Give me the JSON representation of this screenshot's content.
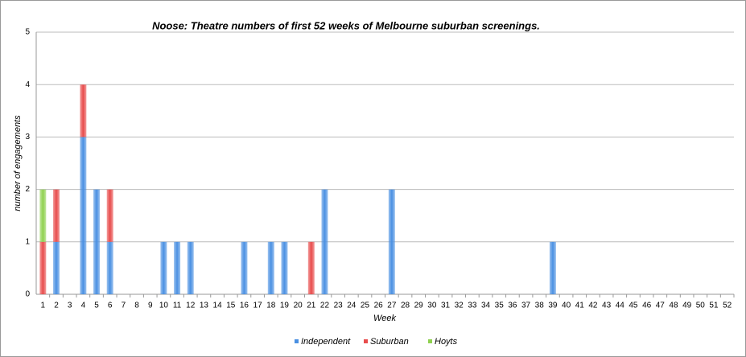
{
  "chart_data": {
    "type": "stacked_bar",
    "title": "Noose: Theatre numbers of first 52 weeks of Melbourne suburban screenings.",
    "x_label": "Week",
    "y_label": "number of engagements",
    "categories": [
      "1",
      "2",
      "3",
      "4",
      "5",
      "6",
      "7",
      "8",
      "9",
      "10",
      "11",
      "12",
      "13",
      "14",
      "15",
      "16",
      "17",
      "18",
      "19",
      "20",
      "21",
      "22",
      "23",
      "24",
      "25",
      "26",
      "27",
      "28",
      "29",
      "30",
      "31",
      "32",
      "33",
      "34",
      "35",
      "36",
      "37",
      "38",
      "39",
      "40",
      "41",
      "42",
      "43",
      "44",
      "45",
      "46",
      "47",
      "48",
      "49",
      "50",
      "51",
      "52"
    ],
    "series": [
      {
        "name": "Independent",
        "color": "#4a90e2",
        "values": [
          0,
          1,
          0,
          3,
          2,
          1,
          0,
          0,
          0,
          1,
          1,
          1,
          0,
          0,
          0,
          1,
          0,
          1,
          1,
          0,
          0,
          2,
          0,
          0,
          0,
          0,
          2,
          0,
          0,
          0,
          0,
          0,
          0,
          0,
          0,
          0,
          0,
          0,
          1,
          0,
          0,
          0,
          0,
          0,
          0,
          0,
          0,
          0,
          0,
          0,
          0,
          0
        ]
      },
      {
        "name": "Suburban",
        "color": "#e84c4c",
        "values": [
          1,
          1,
          0,
          1,
          0,
          1,
          0,
          0,
          0,
          0,
          0,
          0,
          0,
          0,
          0,
          0,
          0,
          0,
          0,
          0,
          1,
          0,
          0,
          0,
          0,
          0,
          0,
          0,
          0,
          0,
          0,
          0,
          0,
          0,
          0,
          0,
          0,
          0,
          0,
          0,
          0,
          0,
          0,
          0,
          0,
          0,
          0,
          0,
          0,
          0,
          0,
          0
        ]
      },
      {
        "name": "Hoyts",
        "color": "#8fd14f",
        "values": [
          1,
          0,
          0,
          0,
          0,
          0,
          0,
          0,
          0,
          0,
          0,
          0,
          0,
          0,
          0,
          0,
          0,
          0,
          0,
          0,
          0,
          0,
          0,
          0,
          0,
          0,
          0,
          0,
          0,
          0,
          0,
          0,
          0,
          0,
          0,
          0,
          0,
          0,
          0,
          0,
          0,
          0,
          0,
          0,
          0,
          0,
          0,
          0,
          0,
          0,
          0,
          0
        ]
      }
    ],
    "ylim": [
      0,
      5
    ],
    "yticks": [
      0,
      1,
      2,
      3,
      4,
      5
    ],
    "grid": true,
    "legend": "bottom"
  }
}
